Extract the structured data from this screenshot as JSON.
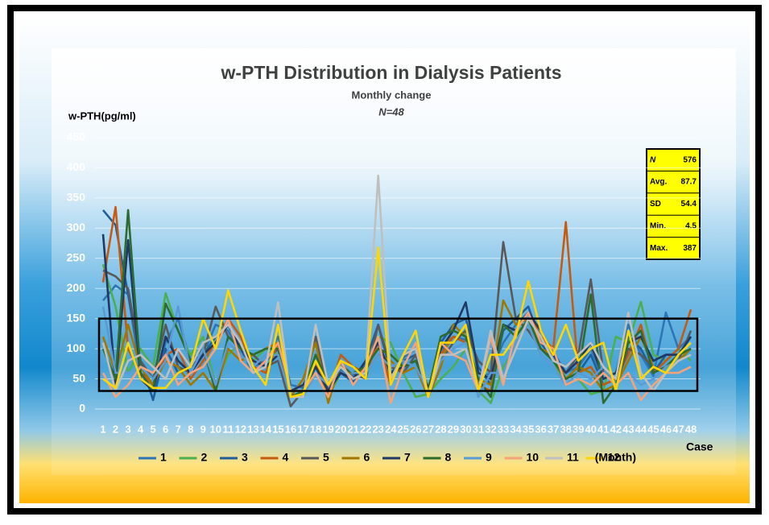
{
  "chart_data": {
    "type": "line",
    "title": "w-PTH Distribution in Dialysis Patients",
    "subtitle": "Monthly change",
    "subtitle2": "N=48",
    "y_label": "w-PTH(pg/ml)",
    "x_label": "Case",
    "legend_title": "(Month)",
    "categories": [
      "1",
      "2",
      "3",
      "4",
      "5",
      "6",
      "7",
      "8",
      "9",
      "10",
      "11",
      "12",
      "13",
      "14",
      "15",
      "16",
      "17",
      "18",
      "19",
      "20",
      "21",
      "22",
      "23",
      "24",
      "25",
      "26",
      "27",
      "28",
      "29",
      "30",
      "31",
      "32",
      "33",
      "34",
      "35",
      "36",
      "37",
      "38",
      "39",
      "40",
      "41",
      "42",
      "43",
      "44",
      "45",
      "46",
      "47",
      "48"
    ],
    "ylim": [
      0,
      450
    ],
    "yticks": [
      0,
      50,
      100,
      150,
      200,
      250,
      300,
      350,
      400,
      450
    ],
    "grid": true,
    "target_range": [
      30,
      150
    ],
    "stats": [
      {
        "label": "N",
        "value": 576
      },
      {
        "label": "Avg.",
        "value": 87.7
      },
      {
        "label": "SD",
        "value": 54.4
      },
      {
        "label": "Min.",
        "value": 4.5
      },
      {
        "label": "Max.",
        "value": 387
      }
    ],
    "series": [
      {
        "name": "1",
        "color": "#2e75b6",
        "values": [
          180,
          205,
          190,
          60,
          40,
          110,
          150,
          80,
          90,
          140,
          130,
          90,
          70,
          80,
          120,
          40,
          35,
          70,
          40,
          65,
          55,
          75,
          110,
          50,
          85,
          100,
          30,
          95,
          120,
          115,
          50,
          60,
          110,
          140,
          160,
          120,
          95,
          60,
          70,
          100,
          50,
          60,
          140,
          90,
          55,
          160,
          100,
          120
        ]
      },
      {
        "name": "2",
        "color": "#4caf50",
        "values": [
          240,
          170,
          60,
          100,
          70,
          192,
          130,
          90,
          120,
          40,
          90,
          110,
          80,
          100,
          90,
          30,
          30,
          60,
          20,
          60,
          50,
          70,
          120,
          110,
          60,
          20,
          25,
          50,
          70,
          100,
          30,
          10,
          70,
          100,
          150,
          110,
          80,
          40,
          50,
          25,
          30,
          120,
          110,
          178,
          90,
          80,
          100,
          80
        ]
      },
      {
        "name": "3",
        "color": "#1f5e99",
        "values": [
          330,
          305,
          190,
          80,
          15,
          100,
          60,
          70,
          90,
          120,
          140,
          100,
          60,
          80,
          100,
          20,
          25,
          70,
          30,
          60,
          45,
          80,
          140,
          60,
          80,
          90,
          30,
          110,
          140,
          150,
          70,
          40,
          130,
          150,
          170,
          110,
          80,
          50,
          60,
          90,
          40,
          50,
          120,
          100,
          60,
          90,
          90,
          100
        ]
      },
      {
        "name": "4",
        "color": "#c55a11",
        "values": [
          210,
          335,
          100,
          60,
          40,
          90,
          100,
          50,
          80,
          110,
          150,
          120,
          70,
          60,
          110,
          30,
          40,
          80,
          20,
          90,
          70,
          60,
          110,
          40,
          90,
          100,
          30,
          90,
          120,
          110,
          40,
          30,
          140,
          130,
          160,
          120,
          100,
          310,
          60,
          70,
          40,
          50,
          90,
          140,
          60,
          80,
          100,
          165
        ]
      },
      {
        "name": "5",
        "color": "#595959",
        "values": [
          230,
          220,
          200,
          80,
          50,
          140,
          70,
          60,
          90,
          170,
          120,
          100,
          90,
          70,
          80,
          4.5,
          30,
          120,
          30,
          70,
          60,
          50,
          140,
          70,
          60,
          90,
          35,
          80,
          110,
          130,
          80,
          60,
          277,
          150,
          130,
          100,
          80,
          60,
          90,
          215,
          60,
          40,
          100,
          90,
          70,
          60,
          80,
          130
        ]
      },
      {
        "name": "6",
        "color": "#a07800",
        "values": [
          120,
          60,
          140,
          70,
          40,
          80,
          70,
          40,
          60,
          30,
          100,
          80,
          90,
          100,
          110,
          20,
          50,
          110,
          10,
          80,
          50,
          60,
          90,
          80,
          60,
          70,
          20,
          70,
          140,
          120,
          50,
          40,
          180,
          140,
          150,
          100,
          90,
          50,
          70,
          60,
          30,
          40,
          80,
          120,
          70,
          60,
          80,
          100
        ]
      },
      {
        "name": "7",
        "color": "#203864",
        "values": [
          290,
          40,
          280,
          50,
          30,
          120,
          80,
          60,
          90,
          110,
          140,
          100,
          80,
          70,
          90,
          30,
          40,
          70,
          30,
          60,
          50,
          80,
          110,
          60,
          70,
          80,
          35,
          100,
          130,
          177,
          60,
          50,
          140,
          130,
          160,
          130,
          90,
          60,
          80,
          110,
          50,
          60,
          110,
          120,
          80,
          90,
          90,
          120
        ]
      },
      {
        "name": "8",
        "color": "#2e6b2e",
        "values": [
          100,
          50,
          330,
          60,
          30,
          175,
          130,
          80,
          100,
          30,
          120,
          100,
          90,
          100,
          100,
          20,
          30,
          90,
          40,
          70,
          60,
          70,
          100,
          90,
          70,
          80,
          30,
          120,
          130,
          120,
          50,
          20,
          140,
          120,
          150,
          100,
          80,
          50,
          60,
          190,
          10,
          40,
          110,
          130,
          60,
          70,
          90,
          100
        ]
      },
      {
        "name": "9",
        "color": "#5b9bd5",
        "values": [
          170,
          60,
          60,
          70,
          50,
          80,
          170,
          60,
          100,
          40,
          110,
          90,
          70,
          90,
          90,
          20,
          20,
          60,
          40,
          80,
          60,
          60,
          90,
          70,
          80,
          70,
          30,
          80,
          100,
          110,
          20,
          60,
          60,
          110,
          140,
          90,
          70,
          40,
          60,
          50,
          70,
          40,
          60,
          40,
          50,
          70,
          80,
          90
        ]
      },
      {
        "name": "10",
        "color": "#f4a37a",
        "values": [
          60,
          20,
          40,
          70,
          60,
          90,
          40,
          60,
          70,
          100,
          150,
          80,
          60,
          80,
          110,
          30,
          30,
          60,
          20,
          80,
          40,
          70,
          120,
          10,
          70,
          110,
          20,
          110,
          90,
          80,
          30,
          120,
          40,
          130,
          160,
          110,
          100,
          40,
          50,
          40,
          60,
          40,
          60,
          15,
          40,
          60,
          60,
          70
        ]
      },
      {
        "name": "11",
        "color": "#bfbfbf",
        "values": [
          110,
          30,
          80,
          90,
          70,
          50,
          100,
          70,
          110,
          120,
          140,
          110,
          60,
          70,
          177,
          20,
          20,
          140,
          40,
          70,
          50,
          60,
          387,
          50,
          90,
          100,
          20,
          90,
          90,
          100,
          30,
          130,
          50,
          100,
          150,
          120,
          80,
          70,
          90,
          110,
          70,
          50,
          160,
          60,
          30,
          60,
          80,
          90
        ]
      },
      {
        "name": "12",
        "color": "#ffd700",
        "values": [
          50,
          35,
          110,
          50,
          35,
          35,
          60,
          70,
          150,
          100,
          197,
          130,
          70,
          40,
          140,
          20,
          25,
          80,
          40,
          80,
          70,
          50,
          268,
          40,
          90,
          130,
          20,
          110,
          110,
          140,
          30,
          90,
          90,
          120,
          212,
          130,
          90,
          140,
          80,
          100,
          110,
          30,
          130,
          50,
          70,
          60,
          90,
          110
        ]
      }
    ]
  }
}
